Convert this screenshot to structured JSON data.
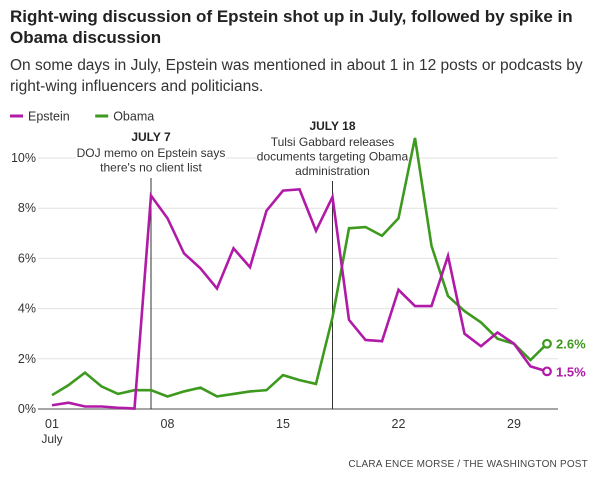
{
  "title": "Right-wing discussion of Epstein shot up in July, followed by spike in Obama discussion",
  "subtitle": "On some days in July, Epstein was mentioned in about 1 in 12 posts or podcasts by right-wing influencers and politicians.",
  "credit": "CLARA ENCE MORSE / THE WASHINGTON POST",
  "chart_data": {
    "type": "line",
    "x": [
      1,
      2,
      3,
      4,
      5,
      6,
      7,
      8,
      9,
      10,
      11,
      12,
      13,
      14,
      15,
      16,
      17,
      18,
      19,
      20,
      21,
      22,
      23,
      24,
      25,
      26,
      27,
      28,
      29,
      30,
      31
    ],
    "xlim": [
      1,
      31
    ],
    "ylim": [
      0,
      10
    ],
    "xticks": [
      {
        "v": 1,
        "label": "01",
        "sub": "July"
      },
      {
        "v": 8,
        "label": "08"
      },
      {
        "v": 15,
        "label": "15"
      },
      {
        "v": 22,
        "label": "22"
      },
      {
        "v": 29,
        "label": "29"
      }
    ],
    "yticks": [
      {
        "v": 0,
        "label": "0%"
      },
      {
        "v": 2,
        "label": "2%"
      },
      {
        "v": 4,
        "label": "4%"
      },
      {
        "v": 6,
        "label": "6%"
      },
      {
        "v": 8,
        "label": "8%"
      },
      {
        "v": 10,
        "label": "10%"
      }
    ],
    "grid": true,
    "legend_position": "top-left",
    "series": [
      {
        "name": "Epstein",
        "color": "#b01aa7",
        "end_label": "1.5%",
        "values": [
          0.15,
          0.25,
          0.1,
          0.1,
          0.05,
          0.02,
          8.5,
          7.6,
          6.2,
          5.6,
          4.8,
          6.4,
          5.65,
          7.9,
          8.7,
          8.75,
          7.1,
          8.45,
          3.55,
          2.75,
          2.7,
          4.75,
          4.1,
          4.1,
          6.1,
          3.0,
          2.5,
          3.05,
          2.6,
          1.7,
          1.5
        ]
      },
      {
        "name": "Obama",
        "color": "#3d9a1e",
        "end_label": "2.6%",
        "values": [
          0.55,
          0.95,
          1.45,
          0.9,
          0.6,
          0.75,
          0.75,
          0.5,
          0.7,
          0.85,
          0.5,
          0.6,
          0.7,
          0.75,
          1.35,
          1.15,
          1.0,
          3.65,
          7.2,
          7.25,
          6.9,
          7.6,
          10.8,
          6.5,
          4.5,
          3.9,
          3.45,
          2.8,
          2.6,
          1.95,
          2.6
        ]
      }
    ],
    "annotations": [
      {
        "x": 7,
        "heading": "JULY 7",
        "lines": [
          "DOJ memo on Epstein says",
          "there's no client list"
        ]
      },
      {
        "x": 18,
        "heading": "JULY 18",
        "lines": [
          "Tulsi Gabbard releases",
          "documents targeting Obama",
          "administration"
        ]
      }
    ]
  }
}
